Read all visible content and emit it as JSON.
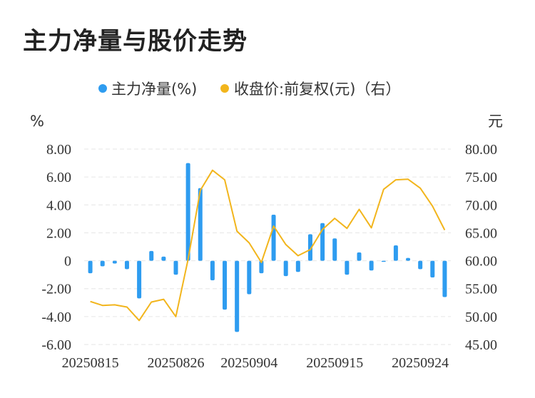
{
  "title": "主力净量与股价走势",
  "chart_data": {
    "type": "bar+line",
    "legend": [
      {
        "label": "主力净量(%)",
        "color": "#2e9cf0"
      },
      {
        "label": "收盘价:前复权(元)（右）",
        "color": "#f2b51c"
      }
    ],
    "left_unit": "%",
    "right_unit": "元",
    "left_ticks": [
      "8.00",
      "6.00",
      "4.00",
      "2.00",
      "0",
      "-2.00",
      "-4.00",
      "-6.00"
    ],
    "right_ticks": [
      "80.00",
      "75.00",
      "70.00",
      "65.00",
      "60.00",
      "55.00",
      "50.00",
      "45.00"
    ],
    "x_ticks": [
      {
        "index": 0,
        "label": "20250815"
      },
      {
        "index": 7,
        "label": "20250826"
      },
      {
        "index": 13,
        "label": "20250904"
      },
      {
        "index": 20,
        "label": "20250915"
      },
      {
        "index": 27,
        "label": "20250924"
      }
    ],
    "ylim_left": [
      -6,
      8
    ],
    "ylim_right": [
      45,
      80
    ],
    "net_flow": [
      -0.9,
      -0.4,
      -0.2,
      -0.6,
      -2.7,
      0.7,
      0.3,
      -1.0,
      7.0,
      5.2,
      -1.4,
      -3.5,
      -5.1,
      -2.4,
      -0.9,
      3.3,
      -1.1,
      -0.8,
      1.9,
      2.7,
      1.6,
      -1.0,
      0.6,
      -0.7,
      0.0,
      1.1,
      0.2,
      -0.6,
      -1.2,
      -2.6
    ],
    "close_price": [
      52.7,
      52.0,
      52.1,
      51.7,
      49.3,
      52.6,
      53.1,
      50.0,
      60.2,
      72.6,
      76.2,
      74.5,
      65.3,
      63.2,
      59.7,
      66.2,
      62.9,
      60.9,
      62.0,
      65.6,
      67.6,
      65.8,
      69.2,
      65.9,
      72.8,
      74.5,
      74.6,
      73.0,
      69.8,
      65.5
    ]
  }
}
